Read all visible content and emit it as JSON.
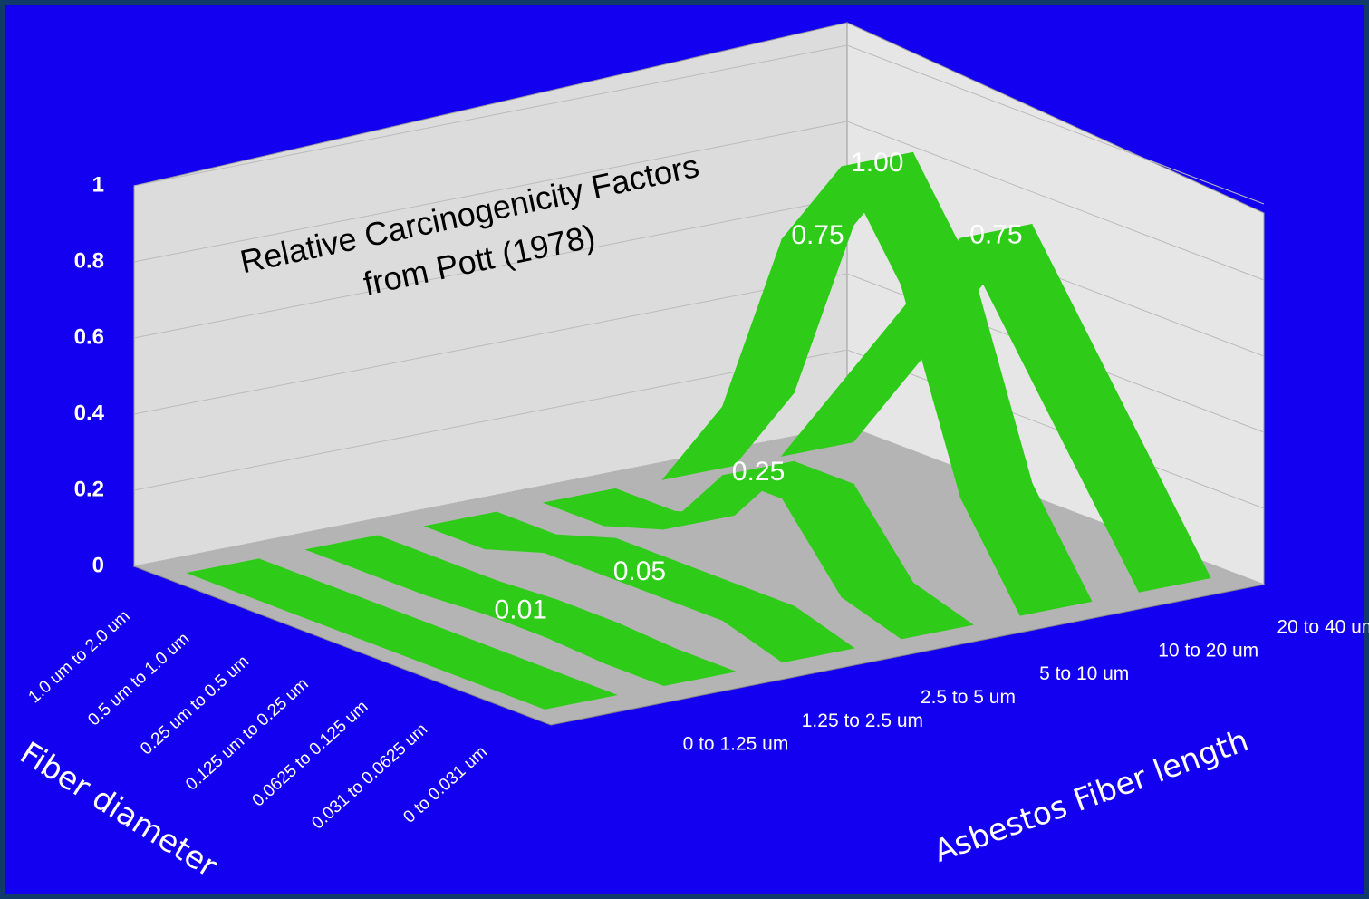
{
  "chart_data": {
    "type": "ribbon3d",
    "title": "Relative Carcinogenicity Factors",
    "subtitle": "from Pott (1978)",
    "x_label": "Fiber diameter",
    "y_label": "Asbestos Fiber length",
    "categories": [
      "1.0 um to 2.0 um",
      "0.5 um to 1.0 um",
      "0.25 um to 0.5 um",
      "0.125 um to 0.25 um",
      "0.0625 to 0.125 um",
      "0.031 to 0.0625 um",
      "0 to 0.031 um"
    ],
    "zlim": [
      0,
      1
    ],
    "zticks": [
      0,
      0.2,
      0.4,
      0.6,
      0.8,
      1
    ],
    "grid": true,
    "series": [
      {
        "name": "0 to 1.25 um",
        "color": "#2ecc18",
        "values": [
          0,
          0,
          0,
          0,
          0,
          0,
          0
        ],
        "value_labels": [
          null,
          null,
          null,
          null,
          null,
          null,
          null
        ]
      },
      {
        "name": "1.25 to 2.5 um",
        "color": "#2ecc18",
        "values": [
          0,
          0,
          0,
          0.01,
          0.01,
          0,
          0
        ],
        "value_labels": [
          null,
          null,
          null,
          "0.01",
          null,
          null,
          null
        ]
      },
      {
        "name": "2.5 to 5 um",
        "color": "#2ecc18",
        "values": [
          0,
          0,
          0.05,
          0.05,
          0.05,
          0.05,
          0
        ],
        "value_labels": [
          null,
          null,
          null,
          "0.05",
          null,
          null,
          null
        ]
      },
      {
        "name": "5 to 10 um",
        "color": "#2ecc18",
        "values": [
          0,
          0,
          0.05,
          0.25,
          0.25,
          0.05,
          0
        ],
        "value_labels": [
          null,
          null,
          null,
          "0.25",
          null,
          null,
          null
        ]
      },
      {
        "name": "10 to 20 um",
        "color": "#2ecc18",
        "values": [
          0,
          0.25,
          0.75,
          1,
          0.75,
          0.25,
          0
        ],
        "value_labels": [
          null,
          null,
          "0.75",
          "1.00",
          null,
          null,
          null
        ]
      },
      {
        "name": "20 to 40 um",
        "color": "#2ecc18",
        "values": [
          0,
          0.25,
          0.5,
          0.75,
          0.5,
          0.25,
          0
        ],
        "value_labels": [
          null,
          null,
          null,
          "0.75",
          null,
          null,
          null
        ]
      }
    ]
  }
}
